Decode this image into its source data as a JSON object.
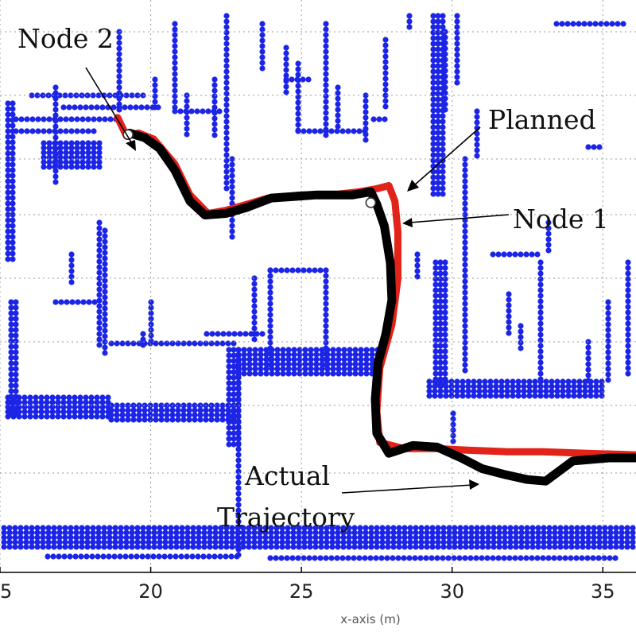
{
  "chart_data": {
    "type": "scatter",
    "title": "",
    "xlabel": "x-axis (m)",
    "ylabel": "",
    "xlim": [
      15,
      36.1
    ],
    "ylim": [
      0,
      18.5
    ],
    "xticks": [
      15,
      20,
      25,
      30,
      35
    ],
    "xtick_labels": [
      "15",
      "20",
      "25",
      "30",
      "35"
    ],
    "grid": true,
    "series": [
      {
        "kind": "planned",
        "color": "#e2231a",
        "points": [
          [
            18.9,
            14.7
          ],
          [
            19.2,
            14.1
          ],
          [
            19.6,
            14.2
          ],
          [
            20.1,
            14.0
          ],
          [
            20.8,
            13.2
          ],
          [
            21.3,
            12.2
          ],
          [
            21.9,
            11.6
          ],
          [
            22.5,
            11.7
          ],
          [
            23.2,
            11.9
          ],
          [
            23.9,
            12.1
          ],
          [
            25.0,
            12.2
          ],
          [
            26.0,
            12.2
          ],
          [
            26.9,
            12.3
          ],
          [
            27.5,
            12.4
          ],
          [
            27.9,
            12.5
          ],
          [
            28.1,
            12.0
          ],
          [
            28.2,
            11.0
          ],
          [
            28.2,
            9.5
          ],
          [
            28.0,
            8.0
          ],
          [
            27.6,
            6.6
          ],
          [
            27.5,
            5.2
          ],
          [
            27.6,
            4.2
          ],
          [
            28.4,
            4.0
          ],
          [
            29.5,
            4.0
          ],
          [
            30.5,
            3.95
          ],
          [
            31.8,
            3.9
          ],
          [
            33.0,
            3.9
          ],
          [
            34.5,
            3.85
          ],
          [
            36.1,
            3.8
          ]
        ]
      },
      {
        "kind": "actual",
        "color": "#000000",
        "points": [
          [
            19.3,
            14.2
          ],
          [
            19.8,
            14.05
          ],
          [
            20.3,
            13.7
          ],
          [
            20.8,
            13.0
          ],
          [
            21.3,
            12.0
          ],
          [
            21.8,
            11.55
          ],
          [
            22.5,
            11.6
          ],
          [
            23.2,
            11.8
          ],
          [
            24.0,
            12.1
          ],
          [
            25.5,
            12.2
          ],
          [
            26.7,
            12.2
          ],
          [
            27.3,
            12.3
          ],
          [
            27.5,
            11.9
          ],
          [
            27.75,
            11.2
          ],
          [
            27.95,
            10.0
          ],
          [
            28.0,
            8.8
          ],
          [
            27.8,
            7.7
          ],
          [
            27.55,
            6.8
          ],
          [
            27.45,
            5.6
          ],
          [
            27.5,
            4.5
          ],
          [
            27.9,
            3.85
          ],
          [
            28.7,
            4.1
          ],
          [
            29.5,
            4.05
          ],
          [
            30.3,
            3.7
          ],
          [
            31.0,
            3.35
          ],
          [
            31.8,
            3.15
          ],
          [
            32.5,
            3.0
          ],
          [
            33.1,
            2.95
          ],
          [
            34.0,
            3.6
          ],
          [
            35.2,
            3.7
          ],
          [
            36.1,
            3.7
          ]
        ]
      }
    ],
    "nodes": [
      {
        "label": "Node 2",
        "x": 19.25,
        "y": 14.15
      },
      {
        "label": "Node 1",
        "x": 27.3,
        "y": 11.95
      }
    ],
    "annotations": [
      {
        "text": "Node 2"
      },
      {
        "text": "Planned"
      },
      {
        "text": "Node 1"
      },
      {
        "text": "Actual"
      },
      {
        "text": "Trajectory"
      }
    ],
    "map_color": "#1c24e6"
  }
}
